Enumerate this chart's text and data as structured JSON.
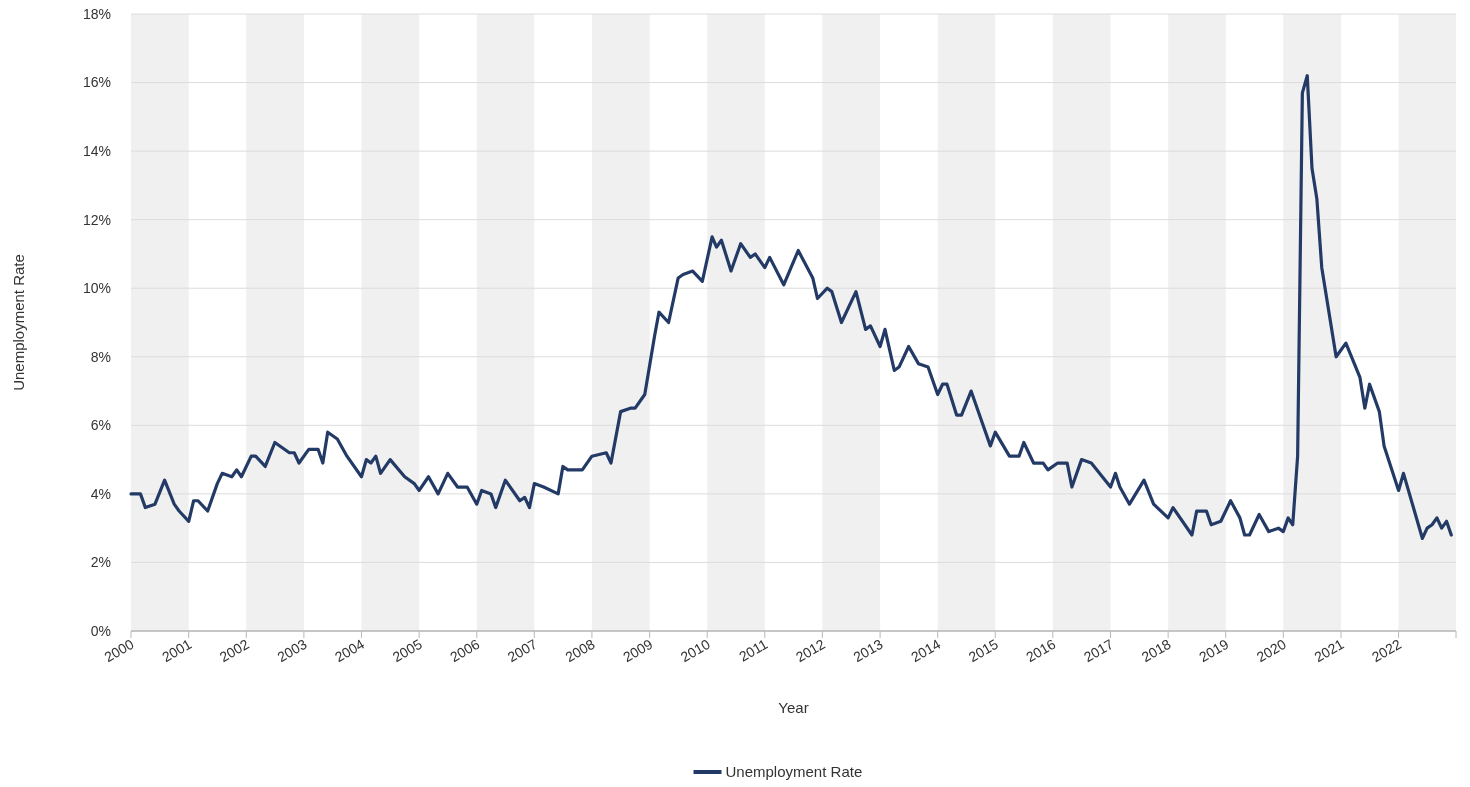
{
  "chart_data": {
    "type": "line",
    "xlabel": "Year",
    "ylabel": "Unemployment Rate",
    "x": [
      "2000-01",
      "2000-03",
      "2000-04",
      "2000-06",
      "2000-08",
      "2000-10",
      "2000-11",
      "2001-01",
      "2001-02",
      "2001-03",
      "2001-05",
      "2001-07",
      "2001-08",
      "2001-10",
      "2001-11",
      "2001-12",
      "2002-02",
      "2002-03",
      "2002-05",
      "2002-07",
      "2002-10",
      "2002-11",
      "2002-12",
      "2003-02",
      "2003-04",
      "2003-05",
      "2003-06",
      "2003-08",
      "2003-10",
      "2004-01",
      "2004-02",
      "2004-03",
      "2004-04",
      "2004-05",
      "2004-07",
      "2004-10",
      "2004-12",
      "2005-01",
      "2005-03",
      "2005-05",
      "2005-07",
      "2005-09",
      "2005-11",
      "2006-01",
      "2006-02",
      "2006-04",
      "2006-05",
      "2006-07",
      "2006-10",
      "2006-11",
      "2006-12",
      "2007-01",
      "2007-03",
      "2007-06",
      "2007-07",
      "2007-08",
      "2007-11",
      "2008-01",
      "2008-04",
      "2008-05",
      "2008-07",
      "2008-09",
      "2008-10",
      "2008-12",
      "2009-02",
      "2009-03",
      "2009-05",
      "2009-07",
      "2009-08",
      "2009-10",
      "2009-12",
      "2010-02",
      "2010-03",
      "2010-04",
      "2010-06",
      "2010-08",
      "2010-10",
      "2010-11",
      "2011-01",
      "2011-02",
      "2011-05",
      "2011-08",
      "2011-11",
      "2011-12",
      "2012-02",
      "2012-03",
      "2012-05",
      "2012-08",
      "2012-10",
      "2012-11",
      "2013-01",
      "2013-02",
      "2013-04",
      "2013-05",
      "2013-07",
      "2013-09",
      "2013-11",
      "2014-01",
      "2014-02",
      "2014-03",
      "2014-05",
      "2014-06",
      "2014-08",
      "2014-10",
      "2014-12",
      "2015-01",
      "2015-04",
      "2015-06",
      "2015-07",
      "2015-09",
      "2015-11",
      "2015-12",
      "2016-02",
      "2016-04",
      "2016-05",
      "2016-07",
      "2016-09",
      "2017-01",
      "2017-02",
      "2017-03",
      "2017-05",
      "2017-08",
      "2017-10",
      "2018-01",
      "2018-02",
      "2018-06",
      "2018-07",
      "2018-09",
      "2018-10",
      "2018-12",
      "2019-02",
      "2019-04",
      "2019-05",
      "2019-06",
      "2019-08",
      "2019-10",
      "2019-12",
      "2020-01",
      "2020-02",
      "2020-03",
      "2020-04",
      "2020-05",
      "2020-06",
      "2020-07",
      "2020-08",
      "2020-09",
      "2020-12",
      "2021-02",
      "2021-05",
      "2021-06",
      "2021-07",
      "2021-09",
      "2021-10",
      "2022-01",
      "2022-02",
      "2022-06",
      "2022-07",
      "2022-08",
      "2022-09",
      "2022-10",
      "2022-11",
      "2022-12"
    ],
    "series": [
      {
        "name": "Unemployment Rate",
        "color": "#233a66",
        "values": [
          4.0,
          4.0,
          3.6,
          3.7,
          4.4,
          3.7,
          3.5,
          3.2,
          3.8,
          3.8,
          3.5,
          4.3,
          4.6,
          4.5,
          4.7,
          4.5,
          5.1,
          5.1,
          4.8,
          5.5,
          5.2,
          5.2,
          4.9,
          5.3,
          5.3,
          4.9,
          5.8,
          5.6,
          5.1,
          4.5,
          5.0,
          4.9,
          5.1,
          4.6,
          5.0,
          4.5,
          4.3,
          4.1,
          4.5,
          4.0,
          4.6,
          4.2,
          4.2,
          3.7,
          4.1,
          4.0,
          3.6,
          4.4,
          3.8,
          3.9,
          3.6,
          4.3,
          4.2,
          4.0,
          4.8,
          4.7,
          4.7,
          5.1,
          5.2,
          4.9,
          6.4,
          6.5,
          6.5,
          6.9,
          8.6,
          9.3,
          9.0,
          10.3,
          10.4,
          10.5,
          10.2,
          11.5,
          11.2,
          11.4,
          10.5,
          11.3,
          10.9,
          11.0,
          10.6,
          10.9,
          10.1,
          11.1,
          10.3,
          9.7,
          10.0,
          9.9,
          9.0,
          9.9,
          8.8,
          8.9,
          8.3,
          8.8,
          7.6,
          7.7,
          8.3,
          7.8,
          7.7,
          6.9,
          7.2,
          7.2,
          6.3,
          6.3,
          7.0,
          6.2,
          5.4,
          5.8,
          5.1,
          5.1,
          5.5,
          4.9,
          4.9,
          4.7,
          4.9,
          4.9,
          4.2,
          5.0,
          4.9,
          4.2,
          4.6,
          4.2,
          3.7,
          4.4,
          3.7,
          3.3,
          3.6,
          2.8,
          3.5,
          3.5,
          3.1,
          3.2,
          3.8,
          3.3,
          2.8,
          2.8,
          3.4,
          2.9,
          3.0,
          2.9,
          3.3,
          3.1,
          5.1,
          15.7,
          16.2,
          13.5,
          12.6,
          10.6,
          8.0,
          8.4,
          7.4,
          6.5,
          7.2,
          6.4,
          5.4,
          4.1,
          4.6,
          2.7,
          3.0,
          3.1,
          3.3,
          3.0,
          3.2,
          2.8
        ]
      }
    ],
    "xlim": [
      "2000-01-01",
      "2022-12-31"
    ],
    "xticks": [
      "2000",
      "2001",
      "2002",
      "2003",
      "2004",
      "2005",
      "2006",
      "2007",
      "2008",
      "2009",
      "2010",
      "2011",
      "2012",
      "2013",
      "2014",
      "2015",
      "2016",
      "2017",
      "2018",
      "2019",
      "2020",
      "2021",
      "2022"
    ],
    "ylim": [
      0,
      18
    ],
    "yticks": [
      {
        "value": 0,
        "label": "0%"
      },
      {
        "value": 2,
        "label": "2%"
      },
      {
        "value": 4,
        "label": "4%"
      },
      {
        "value": 6,
        "label": "6%"
      },
      {
        "value": 8,
        "label": "8%"
      },
      {
        "value": 10,
        "label": "10%"
      },
      {
        "value": 12,
        "label": "12%"
      },
      {
        "value": 14,
        "label": "14%"
      },
      {
        "value": 16,
        "label": "16%"
      },
      {
        "value": 18,
        "label": "18%"
      }
    ],
    "bands": [
      {
        "axis": "x",
        "from": "2000-01-01",
        "to": "2001-01-01",
        "color": "#f0f0f0"
      },
      {
        "axis": "x",
        "from": "2002-01-01",
        "to": "2003-01-01",
        "color": "#f0f0f0"
      },
      {
        "axis": "x",
        "from": "2004-01-01",
        "to": "2005-01-01",
        "color": "#f0f0f0"
      },
      {
        "axis": "x",
        "from": "2006-01-01",
        "to": "2007-01-01",
        "color": "#f0f0f0"
      },
      {
        "axis": "x",
        "from": "2008-01-01",
        "to": "2009-01-01",
        "color": "#f0f0f0"
      },
      {
        "axis": "x",
        "from": "2010-01-01",
        "to": "2011-01-01",
        "color": "#f0f0f0"
      },
      {
        "axis": "x",
        "from": "2012-01-01",
        "to": "2013-01-01",
        "color": "#f0f0f0"
      },
      {
        "axis": "x",
        "from": "2014-01-01",
        "to": "2015-01-01",
        "color": "#f0f0f0"
      },
      {
        "axis": "x",
        "from": "2016-01-01",
        "to": "2017-01-01",
        "color": "#f0f0f0"
      },
      {
        "axis": "x",
        "from": "2018-01-01",
        "to": "2019-01-01",
        "color": "#f0f0f0"
      },
      {
        "axis": "x",
        "from": "2020-01-01",
        "to": "2021-01-01",
        "color": "#f0f0f0"
      },
      {
        "axis": "x",
        "from": "2022-01-01",
        "to": "2022-12-31",
        "color": "#f0f0f0"
      }
    ],
    "grid": "y",
    "legend": "bottom",
    "marker": "none",
    "line_style": "solid"
  }
}
